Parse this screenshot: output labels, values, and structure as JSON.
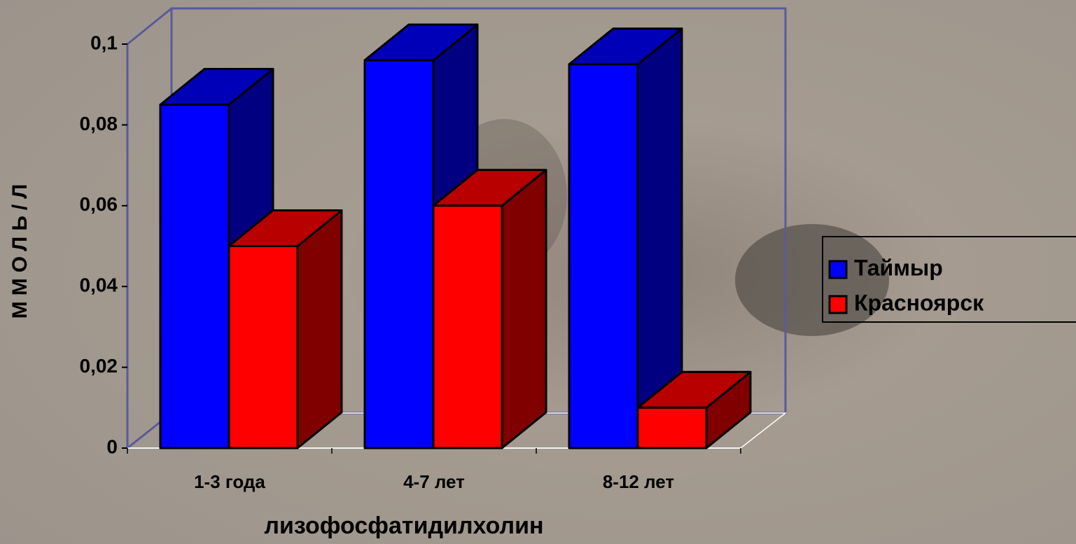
{
  "chart_data": {
    "type": "bar3d",
    "x_label": "лизофосфатидилхолин",
    "y_label": "ММОЛЬ/Л",
    "categories": [
      "1-3 года",
      "4-7 лет",
      "8-12 лет"
    ],
    "series": [
      {
        "name": "Таймыр",
        "color": "#0000ff",
        "values": [
          0.085,
          0.096,
          0.095
        ]
      },
      {
        "name": "Красноярск",
        "color": "#ff0000",
        "values": [
          0.05,
          0.06,
          0.01
        ]
      }
    ],
    "ylim": [
      0,
      0.1
    ],
    "yticks": [
      0,
      {
        "value": 0.02,
        "label": "0,02"
      },
      {
        "value": 0.04,
        "label": "0,04"
      },
      {
        "value": 0.06,
        "label": "0,06"
      },
      {
        "value": 0.08,
        "label": "0,08"
      },
      {
        "value": 0.1,
        "label": "0,1"
      }
    ],
    "legend": "right"
  }
}
